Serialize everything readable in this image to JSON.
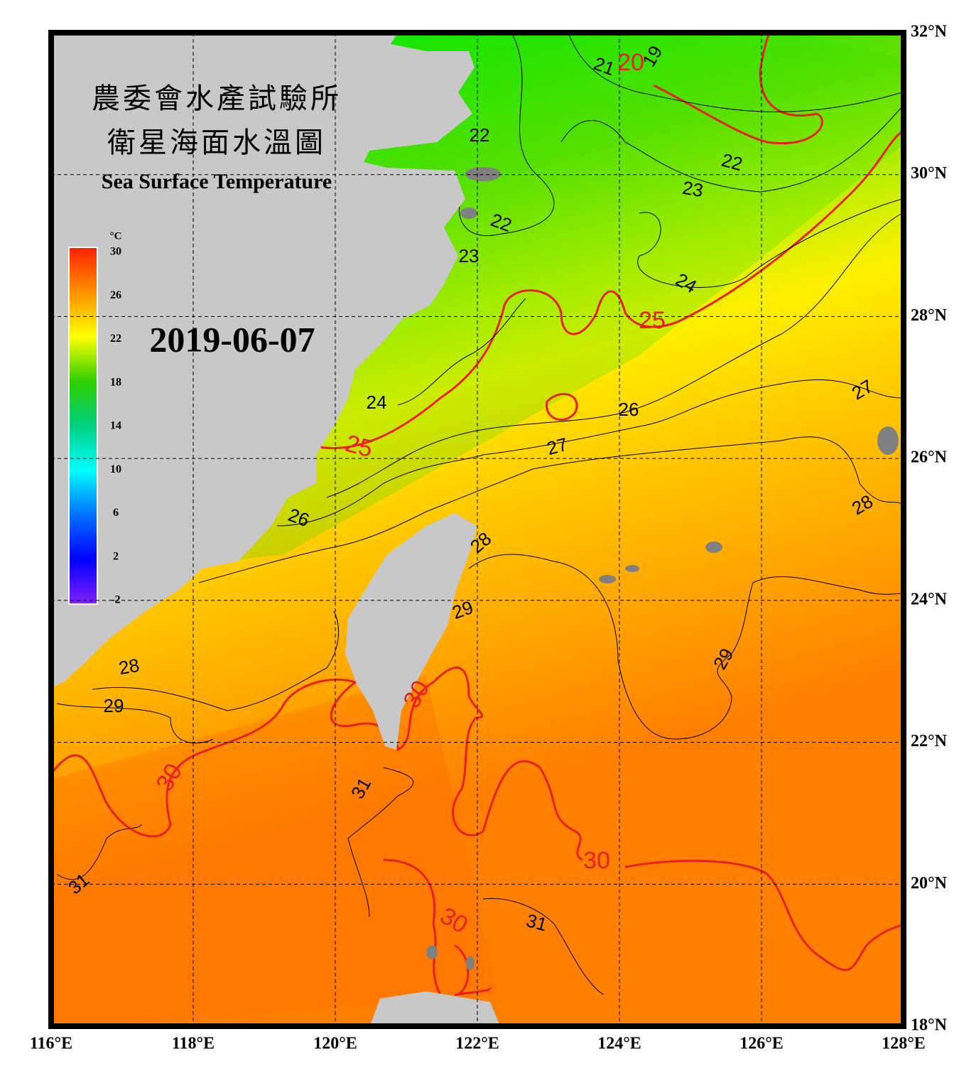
{
  "title": [
    "農委會水產試驗所",
    "衛星海面水溫圖"
  ],
  "subtitle": "Sea Surface Temperature",
  "date": "2019-06-07",
  "colorbar": {
    "unit": "°C",
    "ticks": [
      30,
      26,
      22,
      18,
      14,
      10,
      6,
      2,
      -2
    ]
  },
  "lonlim": [
    116,
    128
  ],
  "latlim": [
    18,
    32
  ],
  "lon_ticks": [
    {
      "value": 116,
      "label": "116°E"
    },
    {
      "value": 118,
      "label": "118°E"
    },
    {
      "value": 120,
      "label": "120°E"
    },
    {
      "value": 122,
      "label": "122°E"
    },
    {
      "value": 124,
      "label": "124°E"
    },
    {
      "value": 126,
      "label": "126°E"
    },
    {
      "value": 128,
      "label": "128°E"
    }
  ],
  "lat_ticks": [
    {
      "value": 32,
      "label": "32°N"
    },
    {
      "value": 30,
      "label": "30°N"
    },
    {
      "value": 28,
      "label": "28°N"
    },
    {
      "value": 26,
      "label": "26°N"
    },
    {
      "value": 24,
      "label": "24°N"
    },
    {
      "value": 22,
      "label": "22°N"
    },
    {
      "value": 20,
      "label": "20°N"
    },
    {
      "value": 18,
      "label": "18°N"
    }
  ],
  "contour_labels": [
    19,
    20,
    21,
    22,
    22,
    23,
    22,
    23,
    24,
    25,
    24,
    26,
    27,
    25,
    27,
    26,
    28,
    28,
    29,
    29,
    28,
    30,
    29,
    30,
    31,
    30,
    31,
    30,
    31
  ]
}
